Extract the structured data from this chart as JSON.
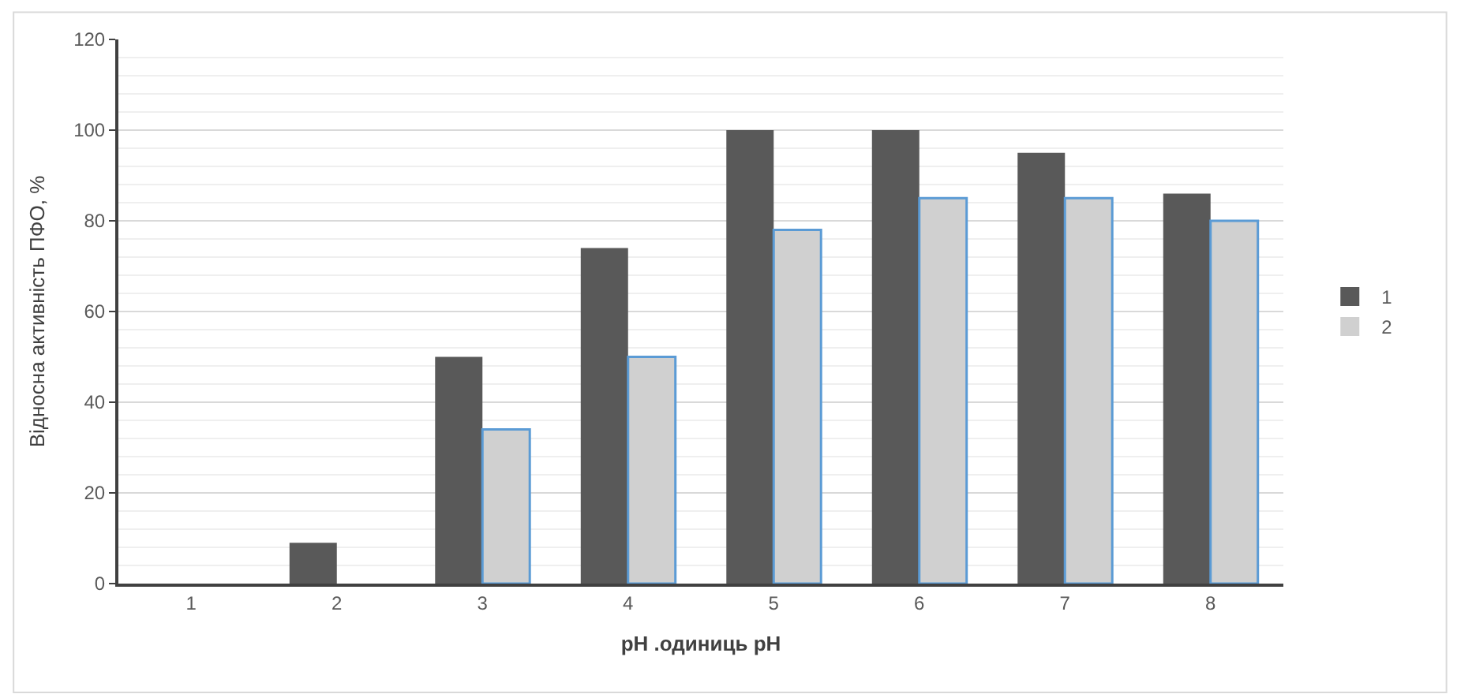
{
  "chart_data": {
    "type": "bar",
    "xlabel": "pH .одиниць pH",
    "ylabel": "Відносна активність ПФО, %",
    "categories": [
      "1",
      "2",
      "3",
      "4",
      "5",
      "6",
      "7",
      "8"
    ],
    "series": [
      {
        "name": "1",
        "color": "#595959",
        "values": [
          0,
          9,
          50,
          74,
          100,
          100,
          95,
          86
        ]
      },
      {
        "name": "2",
        "color": "#d0d0d0",
        "values": [
          0,
          0,
          34,
          50,
          78,
          85,
          85,
          80
        ]
      }
    ],
    "ylim": [
      0,
      120
    ],
    "yticks": [
      0,
      20,
      40,
      60,
      80,
      100,
      120
    ],
    "grid": "y",
    "legend": "right"
  }
}
